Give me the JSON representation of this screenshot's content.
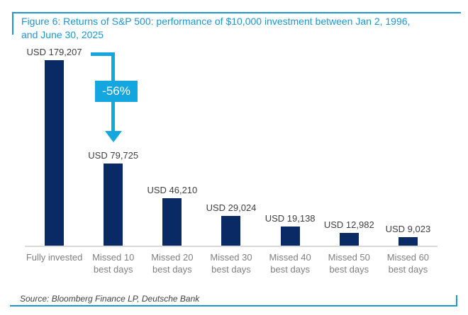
{
  "figure": {
    "title_display": "Figure 6: Returns of S&P 500: performance of $10,000 investment between Jan 2, 1996,\nand June 30, 2025",
    "source": "Source: Bloomberg Finance LP, Deutsche Bank"
  },
  "chart_data": {
    "type": "bar",
    "title": "Figure 6: Returns of S&P 500: performance of $10,000 investment between Jan 2, 1996, and June 30, 2025",
    "categories": [
      "Fully invested",
      "Missed 10 best days",
      "Missed 20 best days",
      "Missed 30 best days",
      "Missed 40 best days",
      "Missed 50 best days",
      "Missed 60 best days"
    ],
    "category_display": [
      "Fully invested",
      "Missed 10\nbest days",
      "Missed 20\nbest days",
      "Missed 30\nbest days",
      "Missed 40\nbest days",
      "Missed 50\nbest days",
      "Missed 60\nbest days"
    ],
    "values": [
      179207,
      79725,
      46210,
      29024,
      19138,
      12982,
      9023
    ],
    "value_labels": [
      "USD 179,207",
      "USD 79,725",
      "USD 46,210",
      "USD 29,024",
      "USD 19,138",
      "USD 12,982",
      "USD 9,023"
    ],
    "unit": "USD",
    "ylim": [
      0,
      179207
    ],
    "grid": false,
    "legend": "none",
    "annotation": {
      "text": "-56%",
      "from_category": "Fully invested",
      "to_category": "Missed 10 best days"
    },
    "colors": {
      "bar": "#0a2a66",
      "accent": "#14a6de",
      "title_text": "#2096cf",
      "value_label_text": "#3f3f3f",
      "category_label_text": "#7f7f7f",
      "axis_line": "#d9d9d9"
    }
  }
}
